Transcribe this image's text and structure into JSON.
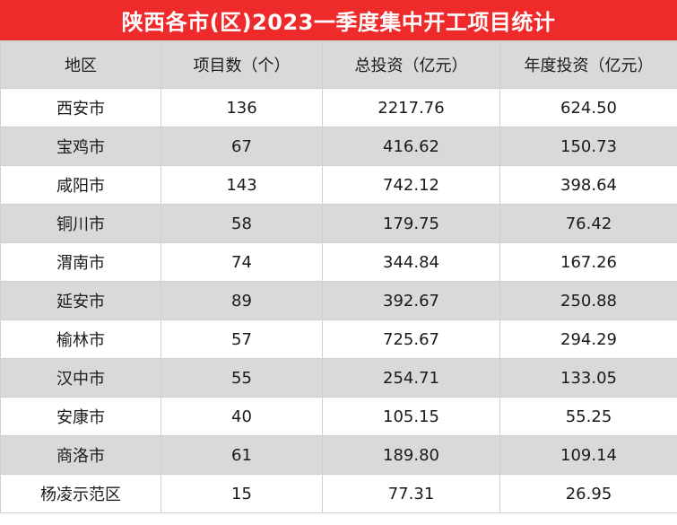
{
  "chart_data": {
    "type": "table",
    "title": "陕西各市(区)2023一季度集中开工项目统计",
    "columns": [
      "地区",
      "项目数（个）",
      "总投资（亿元）",
      "年度投资（亿元）"
    ],
    "rows": [
      [
        "西安市",
        "136",
        "2217.76",
        "624.50"
      ],
      [
        "宝鸡市",
        "67",
        "416.62",
        "150.73"
      ],
      [
        "咸阳市",
        "143",
        "742.12",
        "398.64"
      ],
      [
        "铜川市",
        "58",
        "179.75",
        "76.42"
      ],
      [
        "渭南市",
        "74",
        "344.84",
        "167.26"
      ],
      [
        "延安市",
        "89",
        "392.67",
        "250.88"
      ],
      [
        "榆林市",
        "57",
        "725.67",
        "294.29"
      ],
      [
        "汉中市",
        "55",
        "254.71",
        "133.05"
      ],
      [
        "安康市",
        "40",
        "105.15",
        "55.25"
      ],
      [
        "商洛市",
        "61",
        "189.80",
        "109.14"
      ],
      [
        "杨凌示范区",
        "15",
        "77.31",
        "26.95"
      ]
    ]
  },
  "colors": {
    "title_bg": "#ee2a2a",
    "stripe": "#d9d9d9"
  }
}
